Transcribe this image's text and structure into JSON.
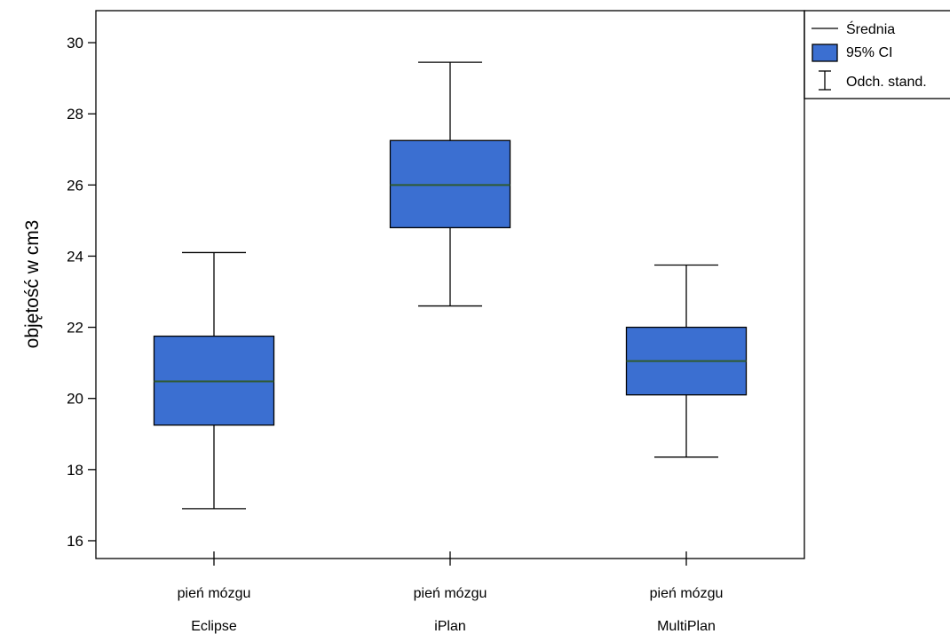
{
  "chart_data": {
    "type": "box",
    "ylabel": "objętość w cm3",
    "ylim": [
      15.5,
      30.9
    ],
    "yticks": [
      16,
      18,
      20,
      22,
      24,
      26,
      28,
      30
    ],
    "categories": [
      {
        "line1": "pień mózgu",
        "line2": "Eclipse"
      },
      {
        "line1": "pień mózgu",
        "line2": "iPlan"
      },
      {
        "line1": "pień mózgu",
        "line2": "MultiPlan"
      }
    ],
    "series": [
      {
        "category": "Eclipse",
        "mean": 20.48,
        "ci_low": 19.25,
        "ci_high": 21.75,
        "sd_low": 16.9,
        "sd_high": 24.1
      },
      {
        "category": "iPlan",
        "mean": 26.0,
        "ci_low": 24.8,
        "ci_high": 27.25,
        "sd_low": 22.6,
        "sd_high": 29.45
      },
      {
        "category": "MultiPlan",
        "mean": 21.05,
        "ci_low": 20.1,
        "ci_high": 22.0,
        "sd_low": 18.35,
        "sd_high": 23.75
      }
    ],
    "legend": {
      "position": "top-right",
      "items": [
        {
          "symbol": "line",
          "label": "Średnia"
        },
        {
          "symbol": "box",
          "label": "95% CI"
        },
        {
          "symbol": "errorbar",
          "label": "Odch. stand."
        }
      ]
    },
    "colors": {
      "box_fill": "#3b6fd1",
      "mean_line": "#2f5a2f",
      "stroke": "#000000"
    }
  }
}
